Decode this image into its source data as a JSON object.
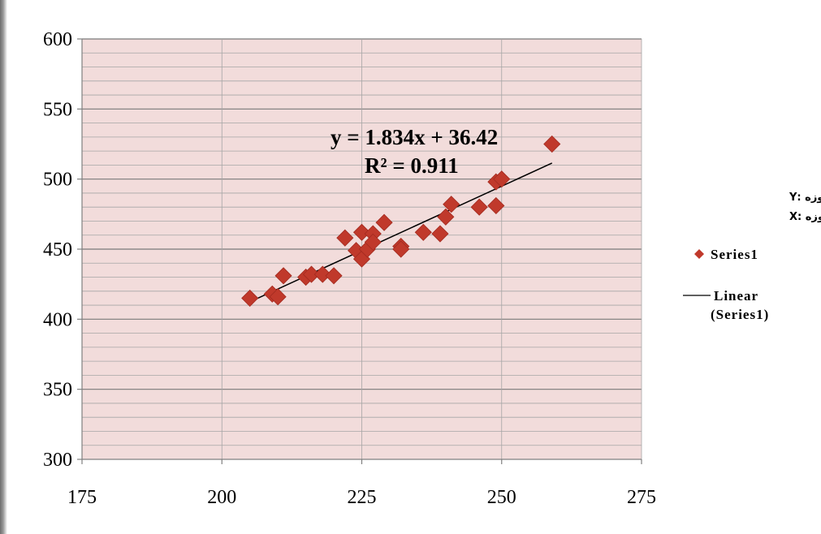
{
  "chart_data": {
    "type": "scatter",
    "title": "",
    "xlabel": "",
    "ylabel": "",
    "xlim": [
      175,
      275
    ],
    "ylim": [
      300,
      600
    ],
    "x_ticks": [
      175,
      200,
      225,
      250,
      275
    ],
    "y_ticks": [
      300,
      350,
      400,
      450,
      500,
      550,
      600
    ],
    "y_minor_step": 10,
    "grid": true,
    "plot_background": "#f2dcdb",
    "series": [
      {
        "name": "Series1",
        "marker": "diamond",
        "color": "#c0392b",
        "points": [
          [
            205,
            415
          ],
          [
            209,
            418
          ],
          [
            210,
            416
          ],
          [
            211,
            431
          ],
          [
            215,
            430
          ],
          [
            216,
            432
          ],
          [
            218,
            432
          ],
          [
            220,
            431
          ],
          [
            222,
            458
          ],
          [
            224,
            449
          ],
          [
            225,
            462
          ],
          [
            225,
            443
          ],
          [
            226,
            450
          ],
          [
            227,
            461
          ],
          [
            227,
            455
          ],
          [
            229,
            469
          ],
          [
            232,
            452
          ],
          [
            232,
            450
          ],
          [
            236,
            462
          ],
          [
            239,
            461
          ],
          [
            240,
            473
          ],
          [
            241,
            482
          ],
          [
            246,
            480
          ],
          [
            249,
            481
          ],
          [
            249,
            498
          ],
          [
            250,
            500
          ],
          [
            259,
            525
          ]
        ]
      }
    ],
    "trendline": {
      "name": "Linear (Series1)",
      "slope": 1.834,
      "intercept": 36.42,
      "x_range": [
        205,
        259
      ],
      "color": "#000000"
    },
    "annotations": {
      "equation": "y = 1.834x + 36.42",
      "r_squared": "R² = 0.911"
    },
    "legend": {
      "placement": "right",
      "axis_note_y": "مقاومت یک روزه :Y",
      "axis_note_x": "مقاومت سه روزه :X",
      "series_label": "Series1",
      "trend_label_line1": "Linear",
      "trend_label_line2": "(Series1)"
    }
  }
}
